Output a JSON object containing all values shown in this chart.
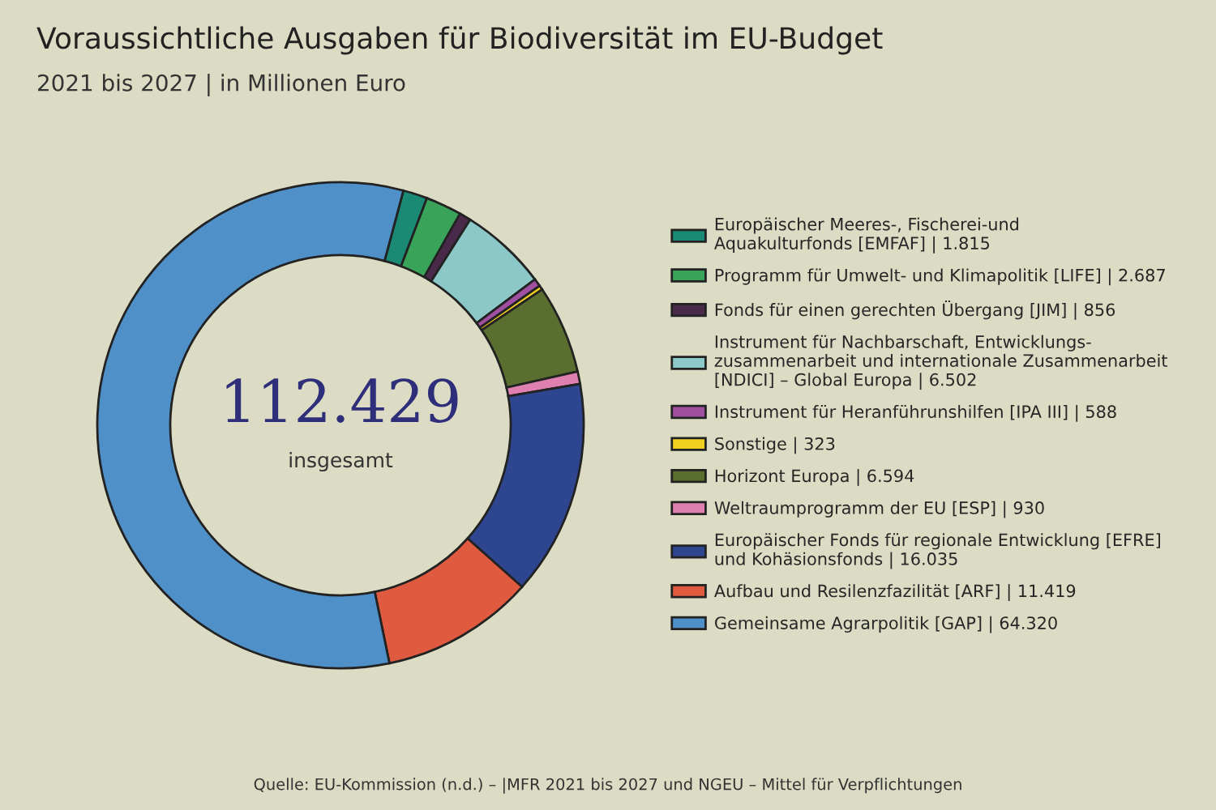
{
  "chart_data": {
    "type": "donut",
    "title": "Voraussichtliche Ausgaben für Biodiversität im EU-Budget",
    "subtitle": "2021 bis 2027 | in Millionen Euro",
    "categories": [
      "Europäischer Meeres-, Fischerei-und\nAquakulturfonds [EMFAF]",
      "Programm für Umwelt- und Klimapolitik [LIFE]",
      "Fonds für einen gerechten Übergang [JIM]",
      "Instrument für Nachbarschaft, Entwicklungs-\nzusammenarbeit und internationale Zusammenarbeit\n[NDICI] – Global Europa",
      "Instrument für Heranführunshilfen [IPA III]",
      "Sonstige",
      "Horizont Europa",
      "Weltraumprogramm der EU [ESP]",
      "Europäischer Fonds für regionale Entwicklung [EFRE]\nund Kohäsionsfonds",
      "Aufbau und Resilenzfazilität [ARF]",
      "Gemeinsame Agrarpolitik [GAP]"
    ],
    "values": [
      1815,
      2687,
      856,
      6502,
      588,
      323,
      6594,
      930,
      16035,
      11419,
      64320
    ],
    "value_labels": [
      "| 1.815",
      "| 2.687",
      "| 856",
      "| 6.502",
      "| 588",
      "| 323",
      "| 6.594",
      "| 930",
      "| 16.035",
      "| 11.419",
      "| 64.320"
    ],
    "colors": [
      "#1a8a74",
      "#3aa35a",
      "#4a2a4a",
      "#8cc8c8",
      "#a050a0",
      "#f0d020",
      "#5a6e30",
      "#e080b0",
      "#2e4590",
      "#e05a40",
      "#5090c8"
    ],
    "annotations": [
      "112.429",
      "insgesamt",
      "Quelle: EU-Kommission (n.d.) – |MFR 2021 bis 2027 und NGEU – Mittel für Verpflichtungen"
    ],
    "legend": "right"
  }
}
